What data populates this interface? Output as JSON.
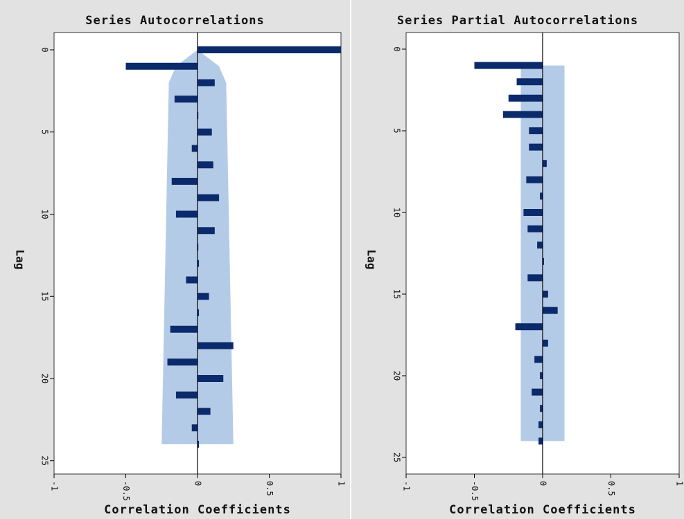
{
  "chart_data": [
    {
      "type": "bar",
      "orientation": "horizontal",
      "title": "Series Autocorrelations",
      "xlabel": "Correlation Coefficients",
      "ylabel": "Lag",
      "xlim": [
        -1,
        1
      ],
      "ylim": [
        0,
        25
      ],
      "xticks": [
        "-1",
        "-0.5",
        "0",
        "0.5",
        "1"
      ],
      "yticks": [
        "0",
        "5",
        "10",
        "15",
        "20",
        "25"
      ],
      "colors": {
        "bar": "#0b2a6b",
        "band": "#b4cbe8",
        "plot_bg": "#ffffff",
        "panel_bg": "#e2e2e2"
      },
      "lags": [
        0,
        1,
        2,
        3,
        4,
        5,
        6,
        7,
        8,
        9,
        10,
        11,
        12,
        13,
        14,
        15,
        16,
        17,
        18,
        19,
        20,
        21,
        22,
        23,
        24
      ],
      "values": [
        1.0,
        -0.5,
        0.12,
        -0.16,
        0.0,
        0.1,
        -0.04,
        0.11,
        -0.18,
        0.15,
        -0.15,
        0.12,
        0.0,
        0.01,
        -0.08,
        0.08,
        0.01,
        -0.19,
        0.25,
        -0.21,
        0.18,
        -0.15,
        0.09,
        -0.04,
        0.01
      ],
      "confidence_band": {
        "lags": [
          0,
          1,
          2,
          24
        ],
        "upper": [
          0.0,
          0.15,
          0.2,
          0.25
        ],
        "lower": [
          0.0,
          -0.15,
          -0.2,
          -0.25
        ]
      }
    },
    {
      "type": "bar",
      "orientation": "horizontal",
      "title": "Series Partial Autocorrelations",
      "xlabel": "Correlation Coefficients",
      "ylabel": "Lag",
      "xlim": [
        -1,
        1
      ],
      "ylim": [
        0,
        25
      ],
      "xticks": [
        "-1",
        "-0.5",
        "0",
        "0.5",
        "1"
      ],
      "yticks": [
        "0",
        "5",
        "10",
        "15",
        "20",
        "25"
      ],
      "colors": {
        "bar": "#0b2a6b",
        "band": "#b4cbe8",
        "plot_bg": "#ffffff",
        "panel_bg": "#e2e2e2"
      },
      "lags": [
        1,
        2,
        3,
        4,
        5,
        6,
        7,
        8,
        9,
        10,
        11,
        12,
        13,
        14,
        15,
        16,
        17,
        18,
        19,
        20,
        21,
        22,
        23,
        24
      ],
      "values": [
        -0.5,
        -0.19,
        -0.25,
        -0.29,
        -0.1,
        -0.1,
        0.03,
        -0.12,
        -0.02,
        -0.14,
        -0.11,
        -0.04,
        0.01,
        -0.11,
        0.04,
        0.11,
        -0.2,
        0.04,
        -0.06,
        -0.02,
        -0.08,
        -0.02,
        -0.03,
        -0.03
      ],
      "confidence_band": {
        "lags": [
          1,
          24
        ],
        "upper": [
          0.16,
          0.16
        ],
        "lower": [
          -0.16,
          -0.16
        ]
      }
    }
  ]
}
